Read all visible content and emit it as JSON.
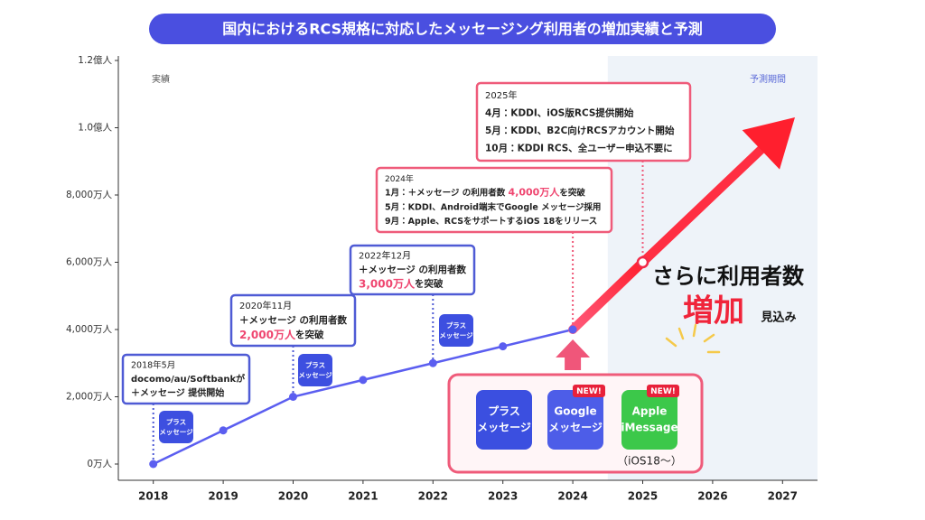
{
  "chart_data": {
    "type": "line",
    "title": "国内におけるRCS規格に対応したメッセージング利用者の増加実績と予測",
    "title_color": "#4a4fe0",
    "categories": [
      "2018",
      "2019",
      "2020",
      "2021",
      "2022",
      "2023",
      "2024",
      "2025",
      "2026",
      "2027"
    ],
    "series": [
      {
        "color": "#5b5ef0",
        "values": [
          0,
          1000,
          2000,
          2500,
          3000,
          3500,
          4000,
          null,
          null,
          null
        ]
      },
      {
        "color": "#f22a48",
        "values": [
          null,
          null,
          null,
          null,
          null,
          null,
          4000,
          6000,
          null,
          null
        ]
      }
    ],
    "ylim": [
      0,
      12000
    ],
    "yticks": [
      {
        "value": 0,
        "label": "0万人"
      },
      {
        "value": 2000,
        "label": "2,000万人"
      },
      {
        "value": 4000,
        "label": "4,000万人"
      },
      {
        "value": 6000,
        "label": "6,000万人"
      },
      {
        "value": 8000,
        "label": "8,000万人"
      },
      {
        "value": 10000,
        "label": "1.0億人"
      },
      {
        "value": 12000,
        "label": "1.2億人"
      }
    ],
    "actual_label": "実績",
    "forecast_label": "予測期間",
    "forecast_shade": "#eef3f9",
    "annotations": [
      {
        "border": "#4f5bd5",
        "chip": [
          "プラス",
          "メッセージ"
        ],
        "lines": [
          [
            {
              "text": "2018年5月"
            }
          ],
          [
            {
              "text": "docomo/au/Softbankが"
            }
          ],
          [
            {
              "text": "＋メッセージ 提供開始"
            }
          ]
        ]
      },
      {
        "border": "#4f5bd5",
        "chip": [
          "プラス",
          "メッセージ"
        ],
        "lines": [
          [
            {
              "text": "2020年11月"
            }
          ],
          [
            {
              "text": "＋メッセージ の利用者数"
            }
          ],
          [
            {
              "text": "2,000万人",
              "color": "#ef4670"
            },
            {
              "text": "を突破"
            }
          ]
        ]
      },
      {
        "border": "#4f5bd5",
        "chip": [
          "プラス",
          "メッセージ"
        ],
        "lines": [
          [
            {
              "text": "2022年12月"
            }
          ],
          [
            {
              "text": "＋メッセージ の利用者数"
            }
          ],
          [
            {
              "text": "3,000万人",
              "color": "#ef4670"
            },
            {
              "text": "を突破"
            }
          ]
        ]
      },
      {
        "border": "#ef5b7a",
        "lines": [
          [
            {
              "text": "2024年"
            }
          ],
          [
            {
              "text": "1月：＋メッセージ の利用者数 "
            },
            {
              "text": "4,000万人",
              "color": "#ef4670"
            },
            {
              "text": "を突破"
            }
          ],
          [
            {
              "text": "5月：KDDI、Android端末でGoogle メッセージ採用"
            }
          ],
          [
            {
              "text": "9月：Apple、RCSをサポートするiOS 18をリリース"
            }
          ]
        ]
      },
      {
        "border": "#ef5b7a",
        "lines": [
          [
            {
              "text": "2025年"
            }
          ],
          [
            {
              "text": "4月：KDDI、iOS版RCS提供開始"
            }
          ],
          [
            {
              "text": "5月：KDDI、B2C向けRCSアカウント開始"
            }
          ],
          [
            {
              "text": "10月：KDDI RCS、全ユーザー申込不要に"
            }
          ]
        ]
      }
    ],
    "callout": {
      "lead": "さらに利用者数",
      "emphasis": "増加",
      "suffix": "見込み"
    },
    "apps": [
      {
        "lines": [
          "プラス",
          "メッセージ"
        ],
        "color": "#3b4fe0"
      },
      {
        "lines": [
          "Google",
          "メッセージ"
        ],
        "color": "#4d5de8",
        "badge": "NEW!"
      },
      {
        "lines": [
          "Apple",
          "iMessage"
        ],
        "color": "#3cc84a",
        "badge": "NEW!",
        "note": "（iOS18〜）"
      }
    ]
  }
}
